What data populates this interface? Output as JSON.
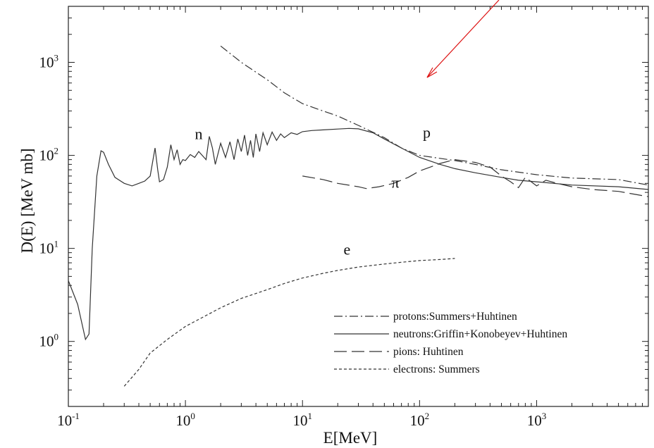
{
  "chart_data": {
    "type": "line",
    "xlabel": "E[MeV]",
    "ylabel": "D(E) [MeV mb]",
    "xscale": "log",
    "yscale": "log",
    "xlim": [
      0.1,
      9000
    ],
    "ylim": [
      0.2,
      4000
    ],
    "grid": false,
    "legend_position": "bottom-right",
    "x_ticks": [
      {
        "base": "10",
        "exp": "-1",
        "value": 0.1
      },
      {
        "base": "10",
        "exp": "0",
        "value": 1
      },
      {
        "base": "10",
        "exp": "1",
        "value": 10
      },
      {
        "base": "10",
        "exp": "2",
        "value": 100
      },
      {
        "base": "10",
        "exp": "3",
        "value": 1000
      }
    ],
    "y_ticks": [
      {
        "base": "10",
        "exp": "0",
        "value": 1
      },
      {
        "base": "10",
        "exp": "1",
        "value": 10
      },
      {
        "base": "10",
        "exp": "2",
        "value": 100
      },
      {
        "base": "10",
        "exp": "3",
        "value": 1000
      }
    ],
    "series": [
      {
        "name": "protons:Summers+Huhtinen",
        "dash": "12 4 2 4",
        "x": [
          2,
          3,
          5,
          7,
          10,
          15,
          20,
          30,
          50,
          70,
          100,
          200,
          300,
          500,
          1000,
          2000,
          5000,
          9000
        ],
        "y": [
          1500,
          1000,
          650,
          470,
          360,
          300,
          265,
          210,
          155,
          120,
          100,
          88,
          80,
          70,
          62,
          57,
          55,
          48
        ]
      },
      {
        "name": "neutrons:Griffin+Konobeyev+Huhtinen",
        "dash": "",
        "x": [
          0.1,
          0.12,
          0.14,
          0.15,
          0.16,
          0.175,
          0.19,
          0.2,
          0.22,
          0.25,
          0.3,
          0.35,
          0.4,
          0.45,
          0.5,
          0.55,
          0.58,
          0.6,
          0.65,
          0.7,
          0.75,
          0.8,
          0.85,
          0.9,
          0.95,
          1.0,
          1.1,
          1.2,
          1.3,
          1.5,
          1.6,
          1.7,
          1.8,
          2.0,
          2.2,
          2.4,
          2.6,
          2.8,
          3.0,
          3.2,
          3.4,
          3.6,
          3.8,
          4.0,
          4.3,
          4.6,
          5.0,
          5.5,
          6.0,
          6.5,
          7.0,
          8.0,
          9.0,
          10,
          12,
          15,
          20,
          25,
          30,
          40,
          50,
          70,
          100,
          150,
          200,
          300,
          500,
          700,
          1000,
          2000,
          5000,
          9000
        ],
        "y": [
          4.5,
          2.5,
          1.05,
          1.2,
          10,
          60,
          112,
          108,
          80,
          58,
          50,
          47,
          50,
          53,
          60,
          120,
          70,
          52,
          55,
          75,
          130,
          90,
          115,
          80,
          90,
          88,
          102,
          95,
          110,
          90,
          160,
          120,
          80,
          135,
          95,
          140,
          90,
          150,
          110,
          165,
          100,
          145,
          95,
          170,
          110,
          175,
          130,
          178,
          145,
          170,
          155,
          175,
          168,
          180,
          185,
          188,
          192,
          195,
          193,
          175,
          150,
          120,
          95,
          80,
          72,
          65,
          58,
          54,
          52,
          48,
          46,
          43
        ]
      },
      {
        "name": "pions: Huhtinen",
        "dash": "18 7",
        "x": [
          10,
          15,
          20,
          30,
          35,
          45,
          60,
          80,
          100,
          150,
          200,
          300,
          400,
          500,
          600,
          700,
          800,
          1000,
          1200,
          1500,
          2000,
          3000,
          5000,
          9000
        ],
        "y": [
          60,
          55,
          50,
          46,
          44,
          46,
          50,
          58,
          68,
          82,
          90,
          84,
          75,
          60,
          52,
          45,
          58,
          47,
          54,
          50,
          46,
          43,
          41,
          36
        ]
      },
      {
        "name": "electrons: Summers",
        "dash": "4 3",
        "x": [
          0.3,
          0.4,
          0.5,
          0.7,
          1,
          1.5,
          2,
          3,
          5,
          7,
          10,
          15,
          20,
          30,
          50,
          70,
          100,
          150,
          200
        ],
        "y": [
          0.33,
          0.5,
          0.75,
          1.05,
          1.45,
          1.9,
          2.3,
          2.9,
          3.6,
          4.2,
          4.8,
          5.4,
          5.8,
          6.3,
          6.8,
          7.1,
          7.4,
          7.6,
          7.8
        ]
      }
    ],
    "annotations": [
      {
        "text": "n",
        "x": 1.3,
        "y": 150
      },
      {
        "text": "p",
        "x": 115,
        "y": 155
      },
      {
        "text": "π",
        "x": 62,
        "y": 45
      },
      {
        "text": "e",
        "x": 24,
        "y": 8.6
      }
    ]
  }
}
